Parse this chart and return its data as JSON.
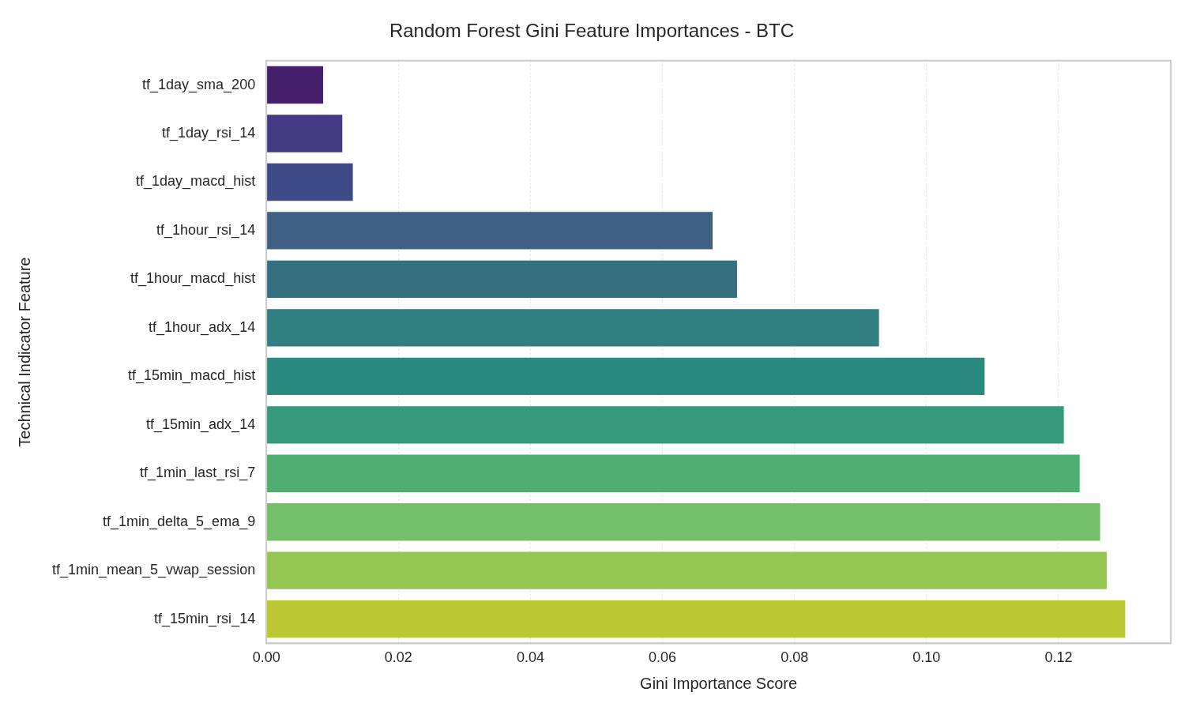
{
  "chart_data": {
    "type": "bar",
    "orientation": "horizontal",
    "title": "Random Forest Gini Feature Importances - BTC",
    "xlabel": "Gini Importance Score",
    "ylabel": "Technical Indicator Feature",
    "categories": [
      "tf_1day_sma_200",
      "tf_1day_rsi_14",
      "tf_1day_macd_hist",
      "tf_1hour_rsi_14",
      "tf_1hour_macd_hist",
      "tf_1hour_adx_14",
      "tf_15min_macd_hist",
      "tf_15min_adx_14",
      "tf_1min_last_rsi_7",
      "tf_1min_delta_5_ema_9",
      "tf_1min_mean_5_vwap_session",
      "tf_15min_rsi_14"
    ],
    "values": [
      0.0086,
      0.0115,
      0.0131,
      0.0676,
      0.0713,
      0.0928,
      0.1088,
      0.1208,
      0.1232,
      0.1263,
      0.1273,
      0.1301
    ],
    "colors": [
      "#45206b",
      "#443a83",
      "#3f4b89",
      "#3f6083",
      "#366f80",
      "#307e7f",
      "#2b8a80",
      "#369a7a",
      "#4faf72",
      "#74bf69",
      "#95c652",
      "#bbc833"
    ],
    "xlim": [
      0,
      0.137
    ],
    "xticks": [
      {
        "value": 0,
        "label": "0.00"
      },
      {
        "value": 0.02,
        "label": "0.02"
      },
      {
        "value": 0.04,
        "label": "0.04"
      },
      {
        "value": 0.06,
        "label": "0.06"
      },
      {
        "value": 0.08,
        "label": "0.08"
      },
      {
        "value": 0.1,
        "label": "0.10"
      },
      {
        "value": 0.12,
        "label": "0.12"
      }
    ],
    "grid": "x",
    "legend": false
  }
}
